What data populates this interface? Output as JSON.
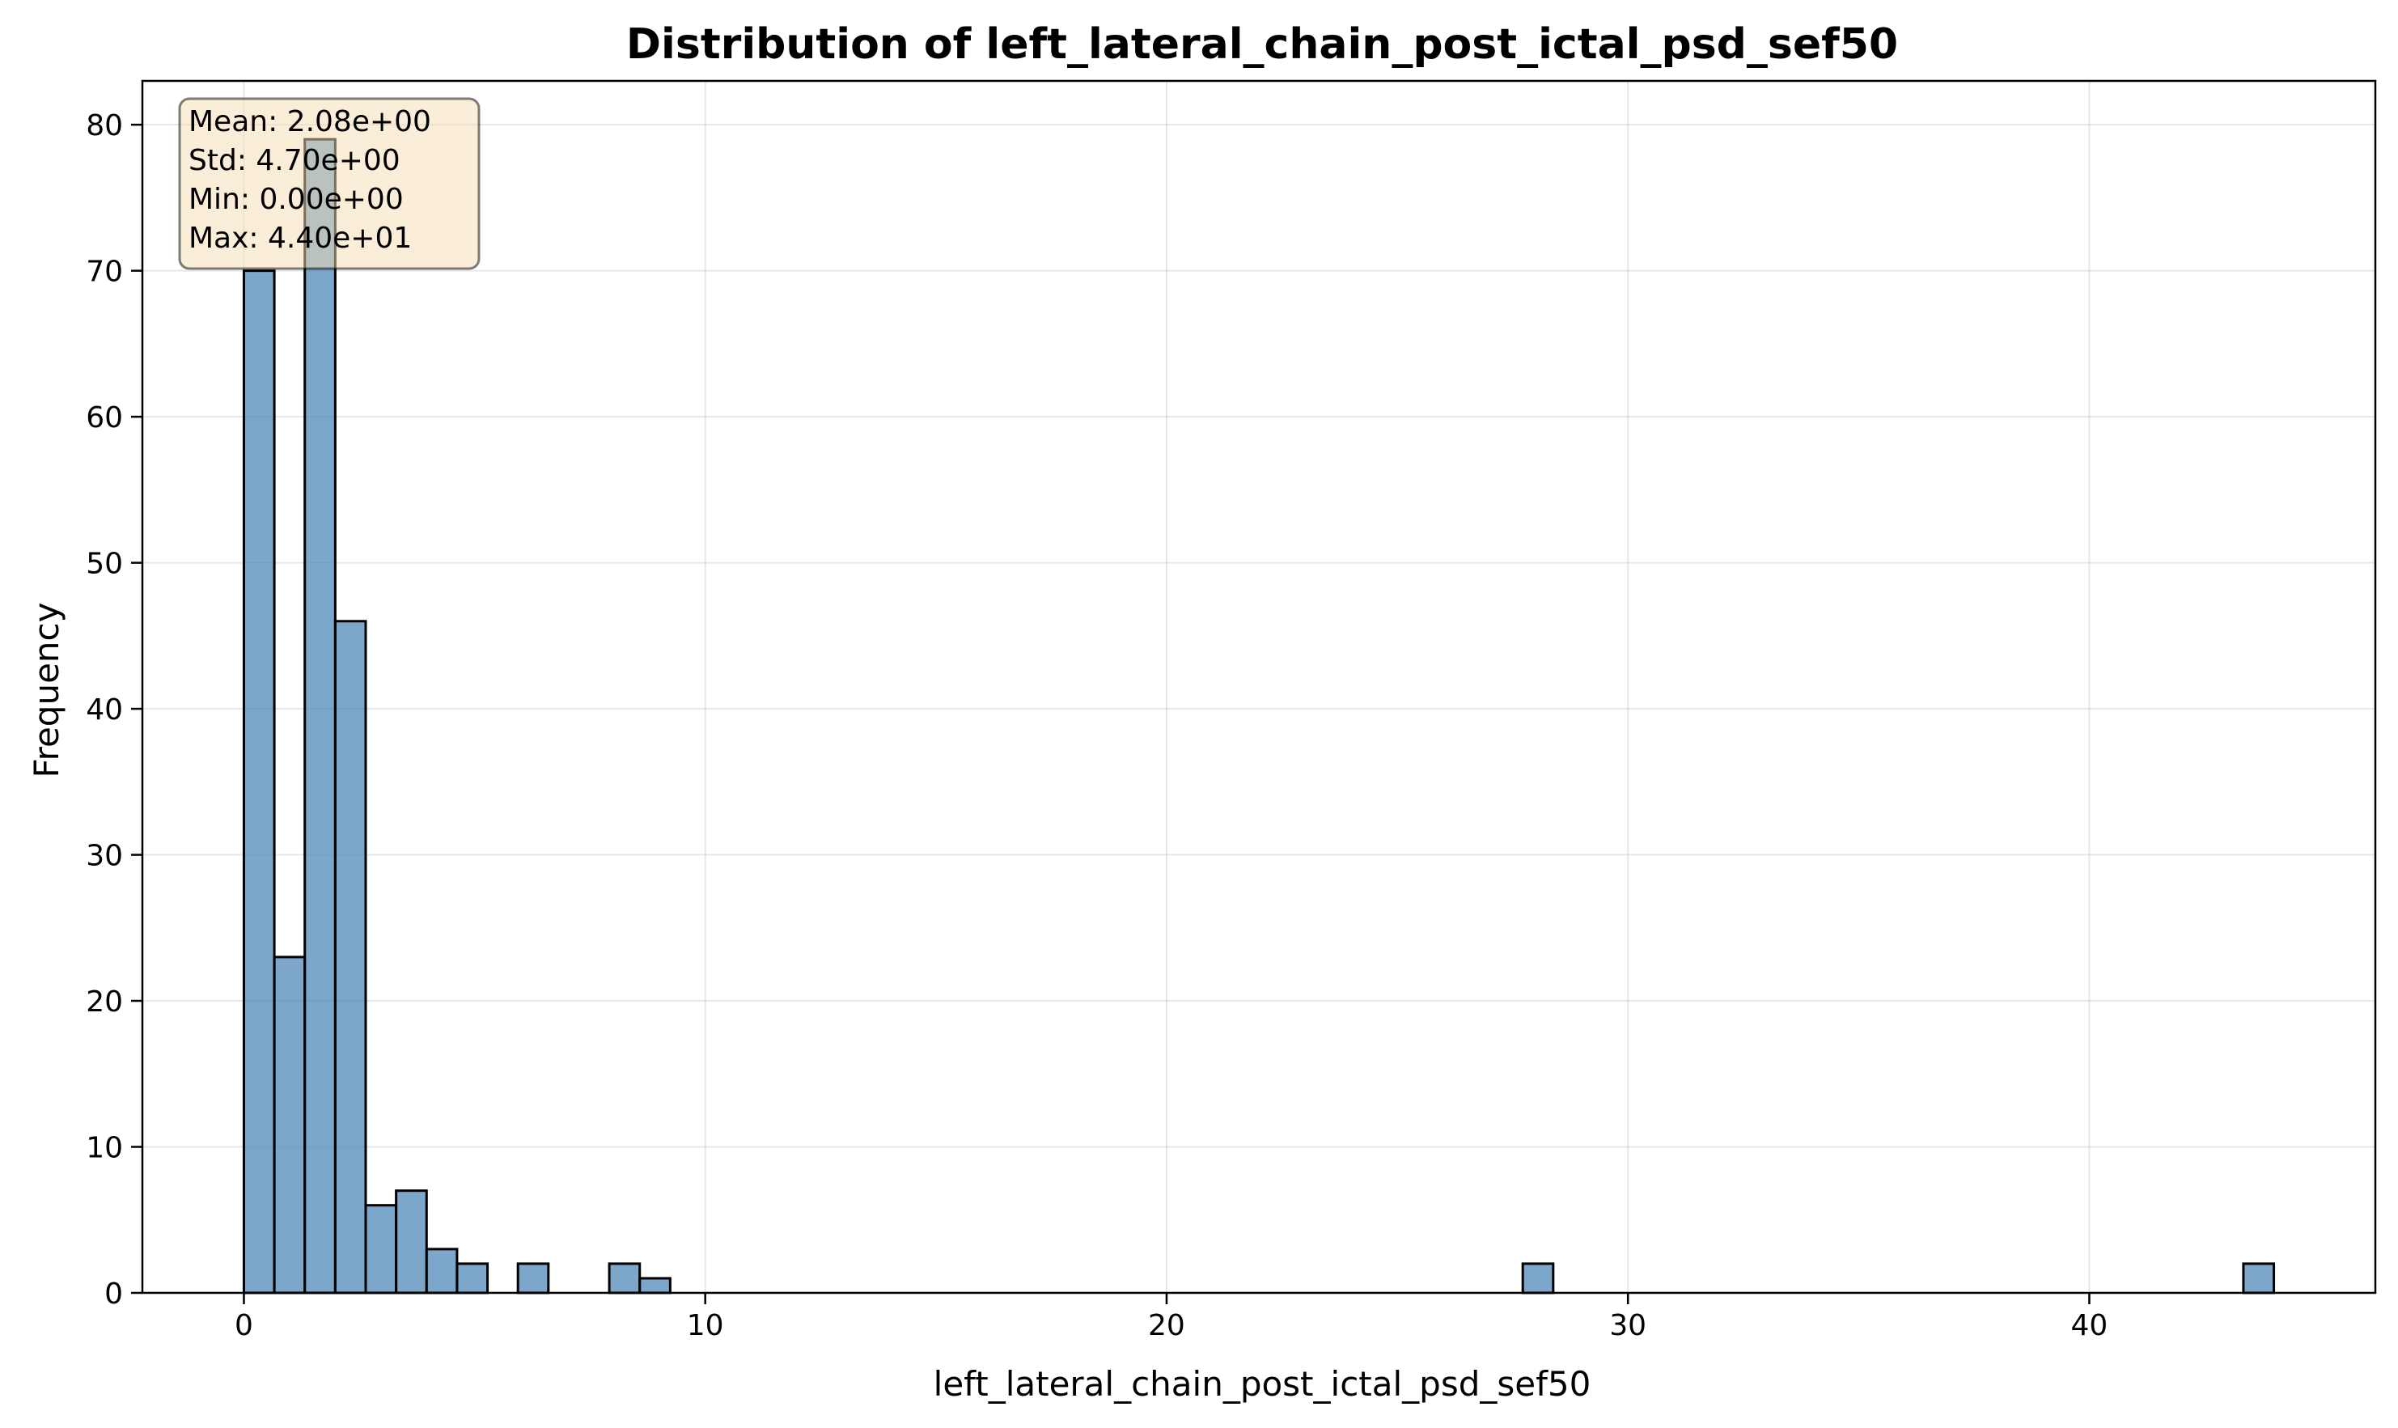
{
  "chart_data": {
    "type": "histogram",
    "title": "Distribution of left_lateral_chain_post_ictal_psd_sef50",
    "xlabel": "left_lateral_chain_post_ictal_psd_sef50",
    "ylabel": "Frequency",
    "xlim": [
      -2.2,
      46.2
    ],
    "ylim": [
      0,
      83
    ],
    "xticks": [
      0,
      10,
      20,
      30,
      40
    ],
    "yticks": [
      0,
      10,
      20,
      30,
      40,
      50,
      60,
      70,
      80
    ],
    "grid": true,
    "bin_width": 0.66,
    "bins": [
      {
        "x0": 0.0,
        "count": 70
      },
      {
        "x0": 0.66,
        "count": 23
      },
      {
        "x0": 1.32,
        "count": 79
      },
      {
        "x0": 1.98,
        "count": 46
      },
      {
        "x0": 2.64,
        "count": 6
      },
      {
        "x0": 3.3,
        "count": 7
      },
      {
        "x0": 3.96,
        "count": 3
      },
      {
        "x0": 4.62,
        "count": 2
      },
      {
        "x0": 5.94,
        "count": 2
      },
      {
        "x0": 7.92,
        "count": 2
      },
      {
        "x0": 8.58,
        "count": 1
      },
      {
        "x0": 27.72,
        "count": 2
      },
      {
        "x0": 43.34,
        "count": 2
      }
    ],
    "stats_box": {
      "placement": "top-left",
      "lines": [
        "Mean: 2.08e+00",
        "Std: 4.70e+00",
        "Min: 0.00e+00",
        "Max: 4.40e+01"
      ]
    },
    "colors": {
      "bar_fill": "#4682b4",
      "bar_edge": "#000000",
      "stats_box_fill": "#f5deb3",
      "stats_box_edge": "#000000"
    }
  }
}
